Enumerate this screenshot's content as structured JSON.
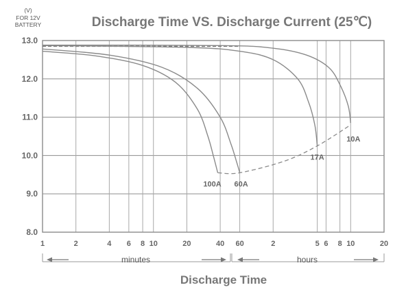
{
  "chart_data": {
    "type": "line",
    "title": "Discharge Time VS. Discharge Current (25℃)",
    "ylabel_lines": [
      "(V)",
      "FOR 12V",
      "BATTERY"
    ],
    "xlabel": "Discharge Time",
    "x_scale": "log",
    "x_unit_minutes": "minutes",
    "x_unit_hours": "hours",
    "ylim": [
      8.0,
      13.0
    ],
    "y_ticks": [
      8.0,
      9.0,
      10.0,
      11.0,
      12.0,
      13.0
    ],
    "y_tick_labels": [
      "8.0",
      "9.0",
      "10.0",
      "11.0",
      "12.0",
      "13.0"
    ],
    "x_ticks_minutes": [
      1,
      2,
      4,
      6,
      8,
      10,
      20,
      40,
      60,
      120,
      300,
      360,
      480,
      600,
      1200
    ],
    "x_tick_labels": [
      "1",
      "2",
      "4",
      "6",
      "8",
      "10",
      "20",
      "40",
      "60",
      "2",
      "5",
      "6",
      "8",
      "10",
      "20"
    ],
    "grid": true,
    "series": [
      {
        "name": "100A",
        "points": [
          [
            1,
            12.72
          ],
          [
            3,
            12.6
          ],
          [
            8,
            12.35
          ],
          [
            16,
            11.9
          ],
          [
            25,
            11.2
          ],
          [
            31,
            10.5
          ],
          [
            35,
            9.95
          ],
          [
            38,
            9.55
          ]
        ]
      },
      {
        "name": "60A",
        "points": [
          [
            1,
            12.78
          ],
          [
            4,
            12.62
          ],
          [
            12,
            12.3
          ],
          [
            25,
            11.75
          ],
          [
            40,
            11.0
          ],
          [
            50,
            10.3
          ],
          [
            56,
            9.85
          ],
          [
            60,
            9.55
          ]
        ]
      },
      {
        "name": "17A",
        "points": [
          [
            1,
            12.87
          ],
          [
            20,
            12.82
          ],
          [
            60,
            12.72
          ],
          [
            120,
            12.5
          ],
          [
            200,
            12.0
          ],
          [
            250,
            11.4
          ],
          [
            285,
            10.8
          ],
          [
            300,
            10.25
          ]
        ]
      },
      {
        "name": "10A",
        "points": [
          [
            1,
            12.88
          ],
          [
            40,
            12.87
          ],
          [
            120,
            12.8
          ],
          [
            240,
            12.62
          ],
          [
            380,
            12.3
          ],
          [
            480,
            11.85
          ],
          [
            570,
            11.3
          ],
          [
            600,
            10.85
          ]
        ]
      }
    ],
    "cutoff_curve": {
      "style": "dashed",
      "points": [
        [
          38,
          9.55
        ],
        [
          60,
          9.55
        ],
        [
          150,
          9.85
        ],
        [
          300,
          10.25
        ],
        [
          600,
          10.8
        ]
      ]
    },
    "dashed_reference": {
      "style": "dashed",
      "from": 1,
      "to": 60,
      "y": 12.85
    }
  }
}
